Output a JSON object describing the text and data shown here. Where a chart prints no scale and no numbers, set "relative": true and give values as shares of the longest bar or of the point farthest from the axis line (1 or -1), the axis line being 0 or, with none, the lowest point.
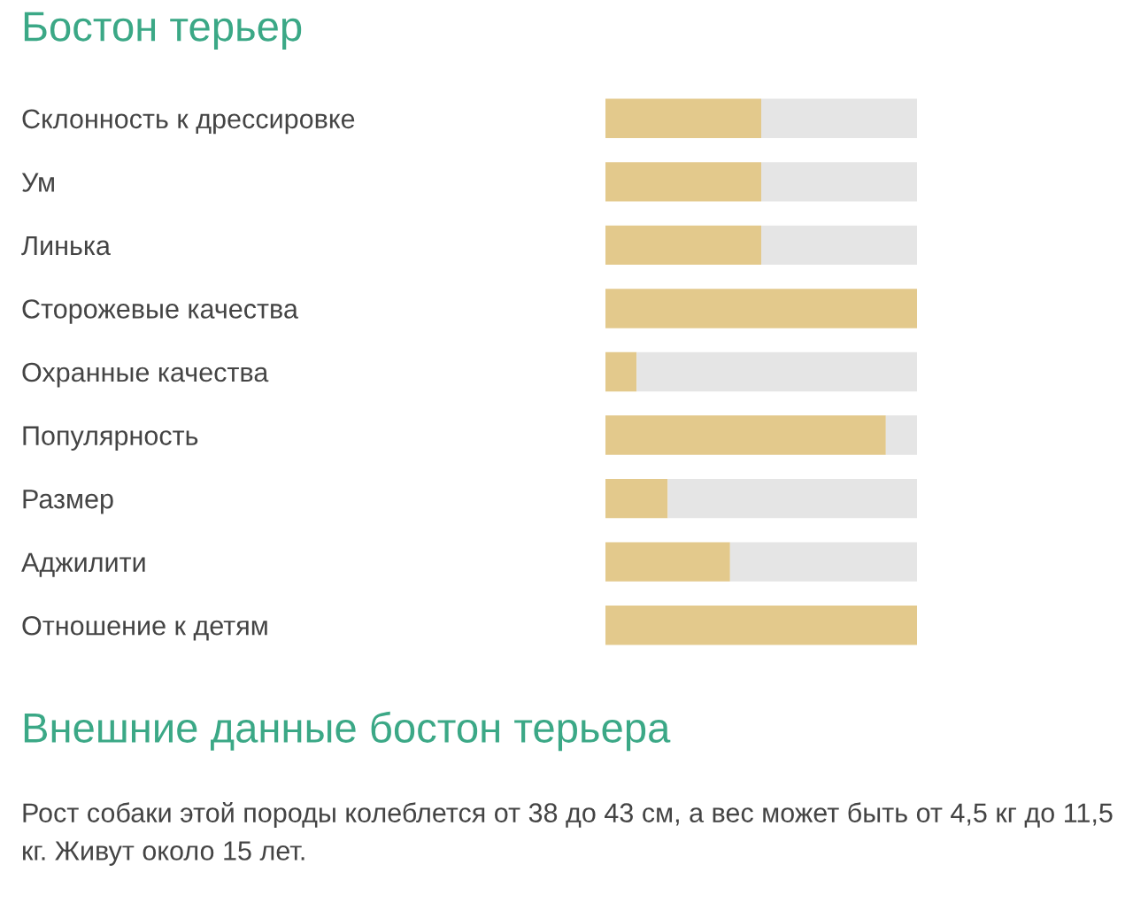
{
  "chart_data": {
    "type": "bar",
    "orientation": "horizontal",
    "stacked": true,
    "relative": true,
    "title": "Бостон терьер",
    "categories": [
      "Склонность к дрессировке",
      "Ум",
      "Линька",
      "Сторожевые качества",
      "Охранные качества",
      "Популярность",
      "Размер",
      "Аджилити",
      "Отношение к детям"
    ],
    "series": [
      {
        "color": "#e3c98c",
        "values": [
          0.5,
          0.5,
          0.5,
          1,
          0.1,
          0.9,
          0.2,
          0.4,
          1
        ]
      },
      {
        "color": "#e5e5e5",
        "values": [
          0.5,
          0.5,
          0.5,
          null,
          0.9,
          0.1,
          0.8,
          0.6,
          null
        ]
      }
    ],
    "annotations": [
      "Внешние данные бостон терьера",
      "Рост собаки этой породы колеблется от 38 до 43 см, а вес может быть от 4,5 кг до 11,5 кг. Живут около 15 лет."
    ]
  }
}
